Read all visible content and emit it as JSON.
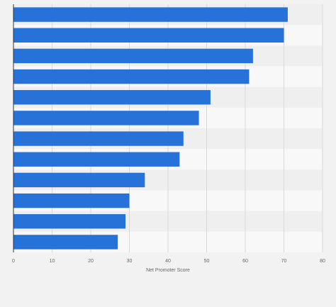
{
  "chart_data": {
    "type": "bar",
    "orientation": "horizontal",
    "categories": [
      "",
      "",
      "",
      "",
      "",
      "",
      "",
      "",
      "",
      "",
      "",
      ""
    ],
    "values": [
      71,
      70,
      62,
      61,
      51,
      48,
      44,
      43,
      34,
      30,
      29,
      27
    ],
    "xlabel": "Net Promoter Score",
    "ylabel": "",
    "xlim": [
      0,
      80
    ],
    "xticks": [
      "0",
      "10",
      "20",
      "30",
      "40",
      "50",
      "60",
      "70",
      "80"
    ],
    "grid": true,
    "legend": "none",
    "colors": {
      "bar": "#2672d9",
      "band_a": "#efefef",
      "band_b": "#f8f8f8",
      "grid": "#d9d9d9",
      "axis": "#333333"
    }
  }
}
